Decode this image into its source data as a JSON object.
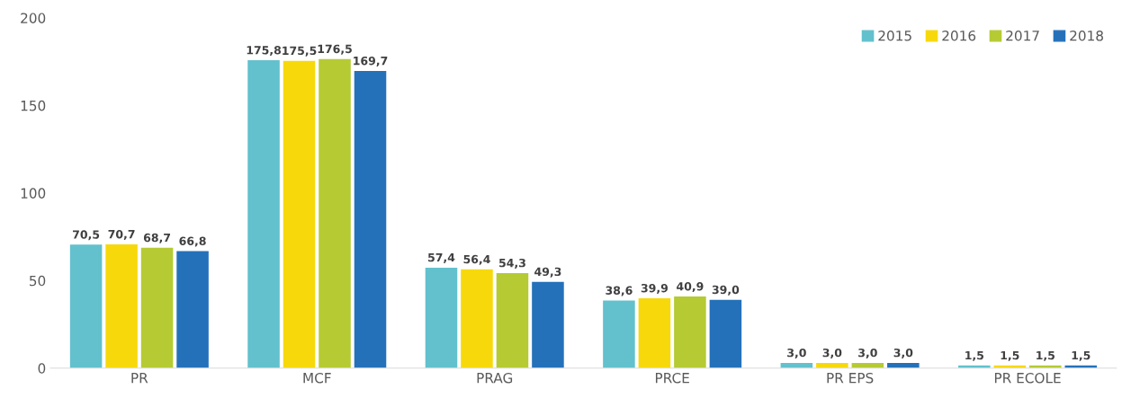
{
  "chart_data": {
    "type": "bar",
    "categories": [
      "PR",
      "MCF",
      "PRAG",
      "PRCE",
      "PR EPS",
      "PR ECOLE"
    ],
    "series": [
      {
        "name": "2015",
        "color": "#62c1cd",
        "values": [
          70.5,
          175.8,
          57.4,
          38.6,
          3.0,
          1.5
        ],
        "value_labels": [
          "70,5",
          "175,8",
          "57,4",
          "38,6",
          "3,0",
          "1,5"
        ]
      },
      {
        "name": "2016",
        "color": "#f7d90b",
        "values": [
          70.7,
          175.5,
          56.4,
          39.9,
          3.0,
          1.5
        ],
        "value_labels": [
          "70,7",
          "175,5",
          "56,4",
          "39,9",
          "3,0",
          "1,5"
        ]
      },
      {
        "name": "2017",
        "color": "#b6ca33",
        "values": [
          68.7,
          176.5,
          54.3,
          40.9,
          3.0,
          1.5
        ],
        "value_labels": [
          "68,7",
          "176,5",
          "54,3",
          "40,9",
          "3,0",
          "1,5"
        ]
      },
      {
        "name": "2018",
        "color": "#2471ba",
        "values": [
          66.8,
          169.7,
          49.3,
          39.0,
          3.0,
          1.5
        ],
        "value_labels": [
          "66,8",
          "169,7",
          "49,3",
          "39,0",
          "3,0",
          "1,5"
        ]
      }
    ],
    "ylim": [
      0,
      200
    ],
    "yticks": [
      0,
      50,
      100,
      150,
      200
    ],
    "grid": false,
    "legend": "top right"
  }
}
